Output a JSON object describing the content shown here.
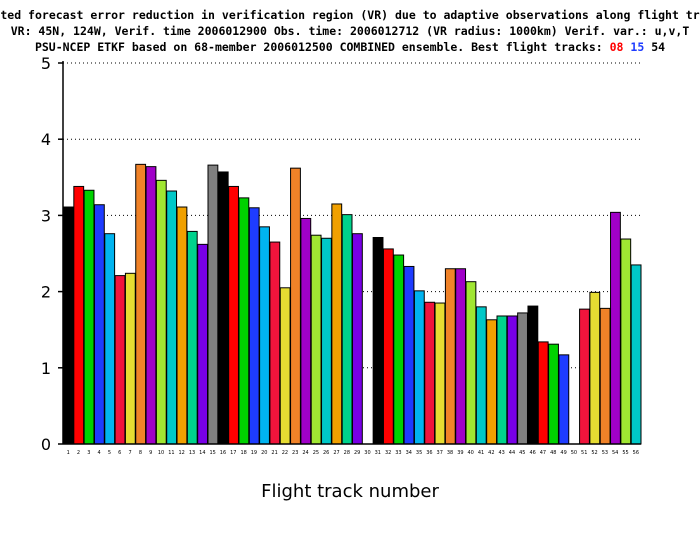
{
  "chart_data": {
    "type": "bar",
    "title_lines": [
      "Expected forecast error reduction in verification region (VR) due to adaptive observations along flight tracks.",
      "VR: 45N, 124W, Verif. time 2006012900 Obs. time: 2006012712 (VR radius: 1000km)  Verif. var.: u,v,T"
    ],
    "title_line3_prefix": "PSU-NCEP ETKF based on 68-member 2006012500 COMBINED ensemble.  Best flight tracks: ",
    "best_tracks": [
      {
        "label": "08",
        "color": "#ff0000"
      },
      {
        "label": "15",
        "color": "#1e3cff"
      },
      {
        "label": "54",
        "color": "#000000"
      }
    ],
    "xlabel": "Flight track number",
    "ylabel": "",
    "ylim": [
      0,
      5
    ],
    "yticks": [
      "0",
      "1",
      "2",
      "3",
      "4",
      "5"
    ],
    "grid": "horizontal-dotted",
    "categories": [
      "1",
      "2",
      "3",
      "4",
      "5",
      "6",
      "7",
      "8",
      "9",
      "10",
      "11",
      "12",
      "13",
      "14",
      "15",
      "16",
      "17",
      "18",
      "19",
      "20",
      "21",
      "22",
      "23",
      "24",
      "25",
      "26",
      "27",
      "28",
      "29",
      "30",
      "31",
      "32",
      "33",
      "34",
      "35",
      "36",
      "37",
      "38",
      "39",
      "40",
      "41",
      "42",
      "43",
      "44",
      "45",
      "46",
      "47",
      "48",
      "49",
      "50",
      "51",
      "52",
      "53",
      "54",
      "55",
      "56"
    ],
    "values": [
      3.11,
      3.38,
      3.33,
      3.14,
      2.76,
      2.21,
      2.24,
      3.67,
      3.64,
      3.46,
      3.32,
      3.11,
      2.79,
      2.62,
      3.66,
      3.57,
      3.38,
      3.23,
      3.1,
      2.85,
      2.65,
      2.05,
      3.62,
      2.96,
      2.74,
      2.7,
      3.15,
      3.01,
      2.76,
      0,
      2.71,
      2.56,
      2.48,
      2.33,
      2.01,
      1.86,
      1.85,
      2.3,
      2.3,
      2.13,
      1.8,
      1.63,
      1.68,
      1.68,
      1.72,
      1.81,
      1.34,
      1.31,
      1.17,
      0,
      1.77,
      1.99,
      1.78,
      3.04,
      2.69,
      2.35
    ],
    "colors": [
      "#000000",
      "#ff0000",
      "#00d200",
      "#1e3cff",
      "#00b4f0",
      "#f0143c",
      "#e6dc32",
      "#f08228",
      "#a000c8",
      "#a0e632",
      "#00c8c8",
      "#f0a000",
      "#00d28c",
      "#7800e6",
      "#808080",
      "#000000",
      "#ff0000",
      "#00d200",
      "#1e3cff",
      "#00b4f0",
      "#f0143c",
      "#e6dc32",
      "#f08228",
      "#a000c8",
      "#a0e632",
      "#00c8c8",
      "#f0a000",
      "#00d28c",
      "#7800e6",
      "#808080",
      "#000000",
      "#ff0000",
      "#00d200",
      "#1e3cff",
      "#00b4f0",
      "#f0143c",
      "#e6dc32",
      "#f08228",
      "#a000c8",
      "#a0e632",
      "#00c8c8",
      "#f0a000",
      "#00d28c",
      "#7800e6",
      "#808080",
      "#000000",
      "#ff0000",
      "#00d200",
      "#1e3cff",
      "#00b4f0",
      "#f0143c",
      "#e6dc32",
      "#f08228",
      "#a000c8",
      "#a0e632",
      "#00c8c8"
    ]
  }
}
